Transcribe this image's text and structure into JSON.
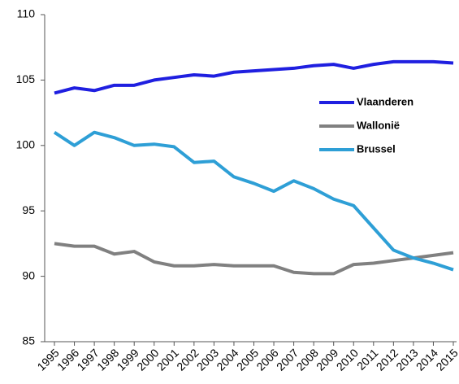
{
  "chart_data": {
    "type": "line",
    "categories": [
      "1995",
      "1996",
      "1997",
      "1998",
      "1999",
      "2000",
      "2001",
      "2002",
      "2003",
      "2004",
      "2005",
      "2006",
      "2007",
      "2008",
      "2009",
      "2010",
      "2011",
      "2012",
      "2013",
      "2014",
      "2015"
    ],
    "series": [
      {
        "name": "Vlaanderen",
        "color": "#1f1fe0",
        "values": [
          104.0,
          104.4,
          104.2,
          104.6,
          104.6,
          105.0,
          105.2,
          105.4,
          105.3,
          105.6,
          105.7,
          105.8,
          105.9,
          106.1,
          106.2,
          105.9,
          106.2,
          106.4,
          106.4,
          106.4,
          106.3
        ]
      },
      {
        "name": "Wallonië",
        "color": "#808080",
        "values": [
          92.5,
          92.3,
          92.3,
          91.7,
          91.9,
          91.1,
          90.8,
          90.8,
          90.9,
          90.8,
          90.8,
          90.8,
          90.3,
          90.2,
          90.2,
          90.9,
          91.0,
          91.2,
          91.4,
          91.6,
          91.8
        ]
      },
      {
        "name": "Brussel",
        "color": "#2e9fd6",
        "values": [
          101.0,
          100.0,
          101.0,
          100.6,
          100.0,
          100.1,
          99.9,
          98.7,
          98.8,
          97.6,
          97.1,
          96.5,
          97.3,
          96.7,
          95.9,
          95.4,
          93.7,
          92.0,
          91.4,
          91.0,
          90.5
        ]
      }
    ],
    "ylim": [
      85,
      110
    ],
    "yticks": [
      85,
      90,
      95,
      100,
      105,
      110
    ],
    "grid": false,
    "legend_position": "upper right"
  }
}
